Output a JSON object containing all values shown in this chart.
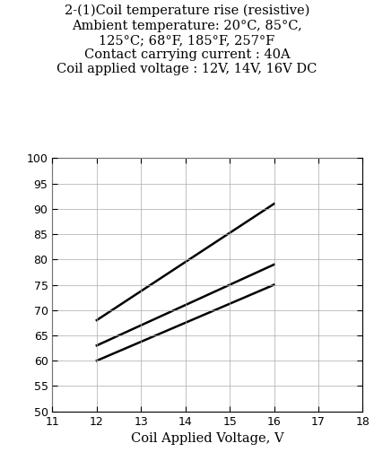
{
  "title_lines": [
    "2-(1)Coil temperature rise (resistive)",
    "Ambient temperature: 20°C, 85°C,",
    "125°C; 68°F, 185°F, 257°F",
    "Contact carrying current : 40A",
    "Coil applied voltage : 12V, 14V, 16V DC"
  ],
  "lines": [
    {
      "x": [
        12,
        16
      ],
      "y": [
        68,
        91
      ]
    },
    {
      "x": [
        12,
        16
      ],
      "y": [
        63,
        79
      ]
    },
    {
      "x": [
        12,
        16
      ],
      "y": [
        60,
        75
      ]
    }
  ],
  "xlim": [
    11,
    18
  ],
  "ylim": [
    50,
    100
  ],
  "xticks": [
    11,
    12,
    13,
    14,
    15,
    16,
    17,
    18
  ],
  "yticks": [
    50,
    55,
    60,
    65,
    70,
    75,
    80,
    85,
    90,
    95,
    100
  ],
  "xlabel": "Coil Applied Voltage, V",
  "line_color": "#000000",
  "line_width": 1.8,
  "grid_color": "#aaaaaa",
  "background_color": "#ffffff",
  "title_fontsize": 10.5,
  "axis_label_fontsize": 10.5,
  "tick_fontsize": 9
}
